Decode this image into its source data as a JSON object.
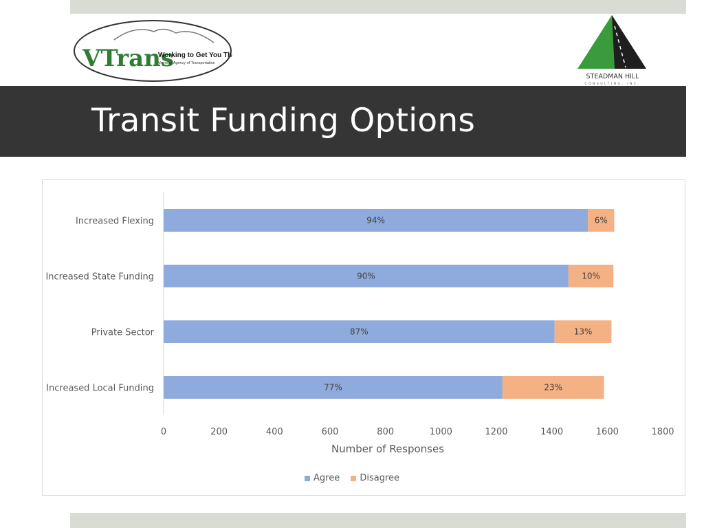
{
  "slide": {
    "title": "Transit Funding Options"
  },
  "logos": {
    "vtrans": {
      "brand": "VTrans",
      "tagline": "Working to Get You There",
      "subtitle": "Vermont Agency of Transportation"
    },
    "steadman": {
      "name": "STEADMAN HILL",
      "subtitle": "CONSULTING, INC."
    }
  },
  "colors": {
    "agree": "#8faadc",
    "disagree": "#f4b183",
    "title_bar": "#353535",
    "strip": "#d9dcd5",
    "logo_green": "#3a9b3c"
  },
  "chart_data": {
    "type": "bar",
    "orientation": "horizontal",
    "stacked": true,
    "categories": [
      "Increased Flexing",
      "Increased State Funding",
      "Private Sector",
      "Increased Local Funding"
    ],
    "series": [
      {
        "name": "Agree",
        "values": [
          1530,
          1460,
          1410,
          1222
        ],
        "labels": [
          "94%",
          "90%",
          "87%",
          "77%"
        ]
      },
      {
        "name": "Disagree",
        "values": [
          95,
          162,
          205,
          366
        ],
        "labels": [
          "6%",
          "10%",
          "13%",
          "23%"
        ]
      }
    ],
    "xlabel": "Number of Responses",
    "xlim": [
      0,
      1800
    ],
    "xticks": [
      0,
      200,
      400,
      600,
      800,
      1000,
      1200,
      1400,
      1600,
      1800
    ],
    "grid": false,
    "legend": "bottom"
  }
}
